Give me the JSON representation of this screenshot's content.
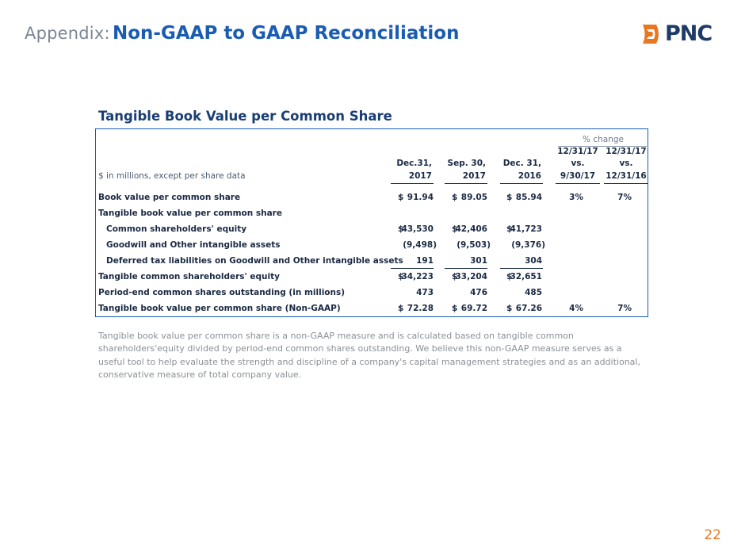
{
  "header": {
    "prefix": "Appendix:",
    "title": "Non-GAAP to GAAP Reconciliation",
    "brand": "PNC",
    "accent_color": "#1a5cb2",
    "logo_color": "#e87722",
    "logo_icon": "pnc-logo-icon"
  },
  "section_title": "Tangible Book Value per Common Share",
  "table": {
    "percent_change_label": "% change",
    "units_label": "$ in millions, except per share data",
    "columns": [
      {
        "line1": "Dec.31,",
        "line2": "2017"
      },
      {
        "line1": "Sep. 30,",
        "line2": "2017"
      },
      {
        "line1": "Dec. 31,",
        "line2": "2016"
      },
      {
        "line1": "12/31/17",
        "line1b": "vs.",
        "line2": "9/30/17"
      },
      {
        "line1": "12/31/17",
        "line1b": "vs.",
        "line2": "12/31/16"
      }
    ],
    "rows": [
      {
        "label": "Book value per common share",
        "dollar": [
          "$",
          "$",
          "$"
        ],
        "values": [
          "91.94",
          "89.05",
          "85.94"
        ],
        "pct": [
          "3%",
          "7%"
        ]
      },
      {
        "label": "Tangible book value per common share"
      },
      {
        "label": "Common shareholders' equity",
        "dollar": [
          "$",
          "$",
          "$"
        ],
        "values": [
          "43,530",
          "42,406",
          "41,723"
        ]
      },
      {
        "label": "Goodwill and Other intangible assets",
        "values": [
          "(9,498)",
          "(9,503)",
          "(9,376)"
        ]
      },
      {
        "label": "Deferred tax liabilities on Goodwill and Other intangible assets",
        "values": [
          "191",
          "301",
          "304"
        ]
      },
      {
        "label": "Tangible common shareholders' equity",
        "dollar": [
          "$",
          "$",
          "$"
        ],
        "values": [
          "34,223",
          "33,204",
          "32,651"
        ]
      },
      {
        "label": "Period-end common shares outstanding (in millions)",
        "values": [
          "473",
          "476",
          "485"
        ]
      },
      {
        "label": "Tangible book value per common share (Non-GAAP)",
        "dollar": [
          "$",
          "$",
          "$"
        ],
        "values": [
          "72.28",
          "69.72",
          "67.26"
        ],
        "pct": [
          "4%",
          "7%"
        ]
      }
    ]
  },
  "footnote": "Tangible book value per common share is a non-GAAP measure and is calculated based on tangible common shareholders'equity divided by period-end common shares outstanding. We believe this non-GAAP measure serves as a useful tool to help evaluate the strength and discipline of a company's capital management strategies and as an additional, conservative measure of total company value.",
  "page_number": "22"
}
